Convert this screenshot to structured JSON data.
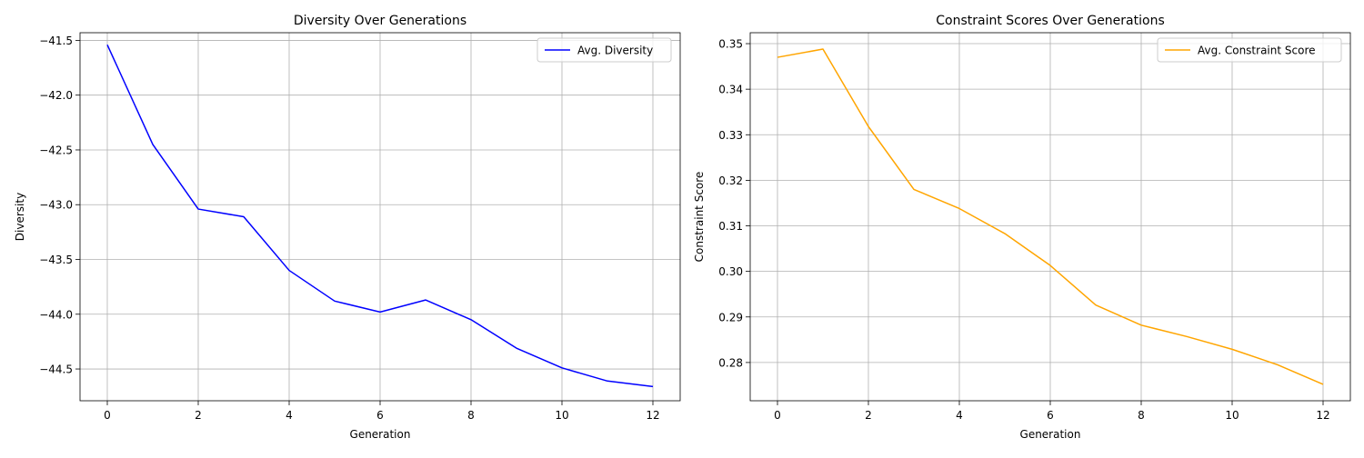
{
  "chart_data": [
    {
      "type": "line",
      "title": "Diversity Over Generations",
      "xlabel": "Generation",
      "ylabel": "Diversity",
      "xlim": [
        -0.6,
        12.6
      ],
      "ylim": [
        -44.79,
        -41.43
      ],
      "xticks": [
        0,
        2,
        4,
        6,
        8,
        10,
        12
      ],
      "xtick_labels": [
        "0",
        "2",
        "4",
        "6",
        "8",
        "10",
        "12"
      ],
      "yticks": [
        -44.5,
        -44.0,
        -43.5,
        -43.0,
        -42.5,
        -42.0,
        -41.5
      ],
      "ytick_labels": [
        "−44.5",
        "−44.0",
        "−43.5",
        "−43.0",
        "−42.5",
        "−42.0",
        "−41.5"
      ],
      "grid": true,
      "legend_position": "top-right",
      "series": [
        {
          "name": "Avg. Diversity",
          "color": "#0000ff",
          "x": [
            0,
            1,
            2,
            3,
            4,
            5,
            6,
            7,
            8,
            9,
            10,
            11,
            12
          ],
          "y": [
            -41.54,
            -42.45,
            -43.04,
            -43.11,
            -43.6,
            -43.88,
            -43.98,
            -43.87,
            -44.05,
            -44.31,
            -44.49,
            -44.61,
            -44.66
          ]
        }
      ]
    },
    {
      "type": "line",
      "title": "Constraint Scores Over Generations",
      "xlabel": "Generation",
      "ylabel": "Constraint Score",
      "xlim": [
        -0.6,
        12.6
      ],
      "ylim": [
        0.2716,
        0.3524
      ],
      "xticks": [
        0,
        2,
        4,
        6,
        8,
        10,
        12
      ],
      "xtick_labels": [
        "0",
        "2",
        "4",
        "6",
        "8",
        "10",
        "12"
      ],
      "yticks": [
        0.28,
        0.29,
        0.3,
        0.31,
        0.32,
        0.33,
        0.34,
        0.35
      ],
      "ytick_labels": [
        "0.28",
        "0.29",
        "0.30",
        "0.31",
        "0.32",
        "0.33",
        "0.34",
        "0.35"
      ],
      "grid": true,
      "legend_position": "top-right",
      "series": [
        {
          "name": "Avg. Constraint Score",
          "color": "#ffa500",
          "x": [
            0,
            1,
            2,
            3,
            4,
            5,
            6,
            7,
            8,
            9,
            10,
            11,
            12
          ],
          "y": [
            0.347,
            0.3488,
            0.3318,
            0.318,
            0.3138,
            0.3083,
            0.3013,
            0.2926,
            0.2882,
            0.2857,
            0.2829,
            0.2795,
            0.2752
          ]
        }
      ]
    }
  ]
}
